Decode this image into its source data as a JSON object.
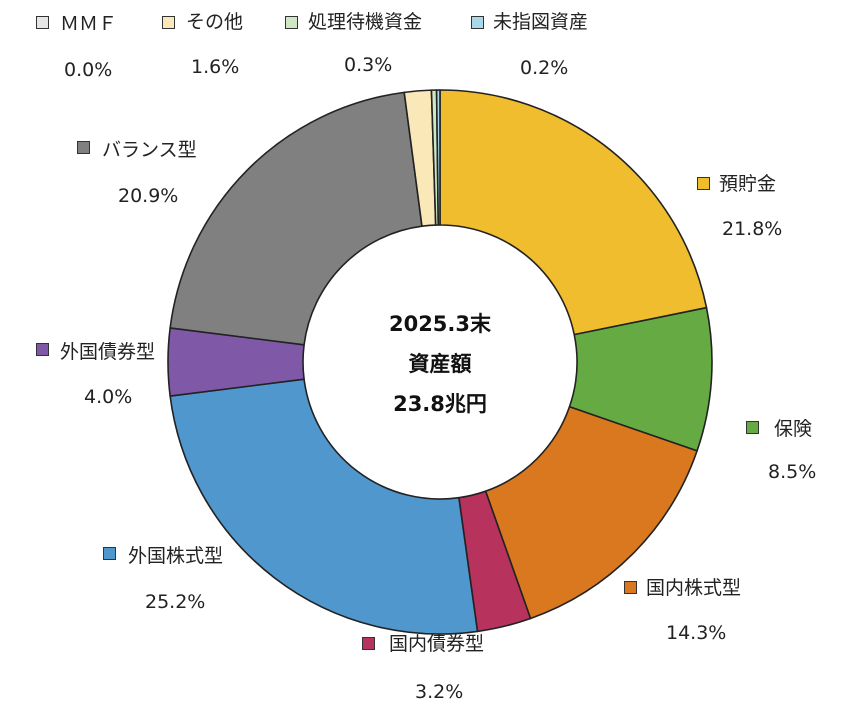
{
  "chart_data": {
    "type": "pie",
    "donut": true,
    "center_text": [
      "2025.3末",
      "資産額",
      "23.8兆円"
    ],
    "categories": [
      "預貯金",
      "保険",
      "国内株式型",
      "国内債券型",
      "外国株式型",
      "外国債券型",
      "バランス型",
      "その他",
      "ＭＭＦ",
      "処理待機資金",
      "未指図資産"
    ],
    "values": [
      21.8,
      8.5,
      14.3,
      3.2,
      25.2,
      4.0,
      20.9,
      1.6,
      0.0,
      0.3,
      0.2
    ],
    "value_labels": [
      "21.8%",
      "8.5%",
      "14.3%",
      "3.2%",
      "25.2%",
      "4.0%",
      "20.9%",
      "1.6%",
      "0.0%",
      "0.3%",
      "0.2%"
    ],
    "colors": [
      "#f0bd2e",
      "#66aa44",
      "#d9781f",
      "#b8325e",
      "#4f97cc",
      "#8058a8",
      "#808080",
      "#fbe8b8",
      "#e6e6e6",
      "#cfe8c4",
      "#a8d8ea"
    ],
    "legend": "labels placed around the ring with colored square markers",
    "start_angle": "12 o'clock, clockwise"
  }
}
